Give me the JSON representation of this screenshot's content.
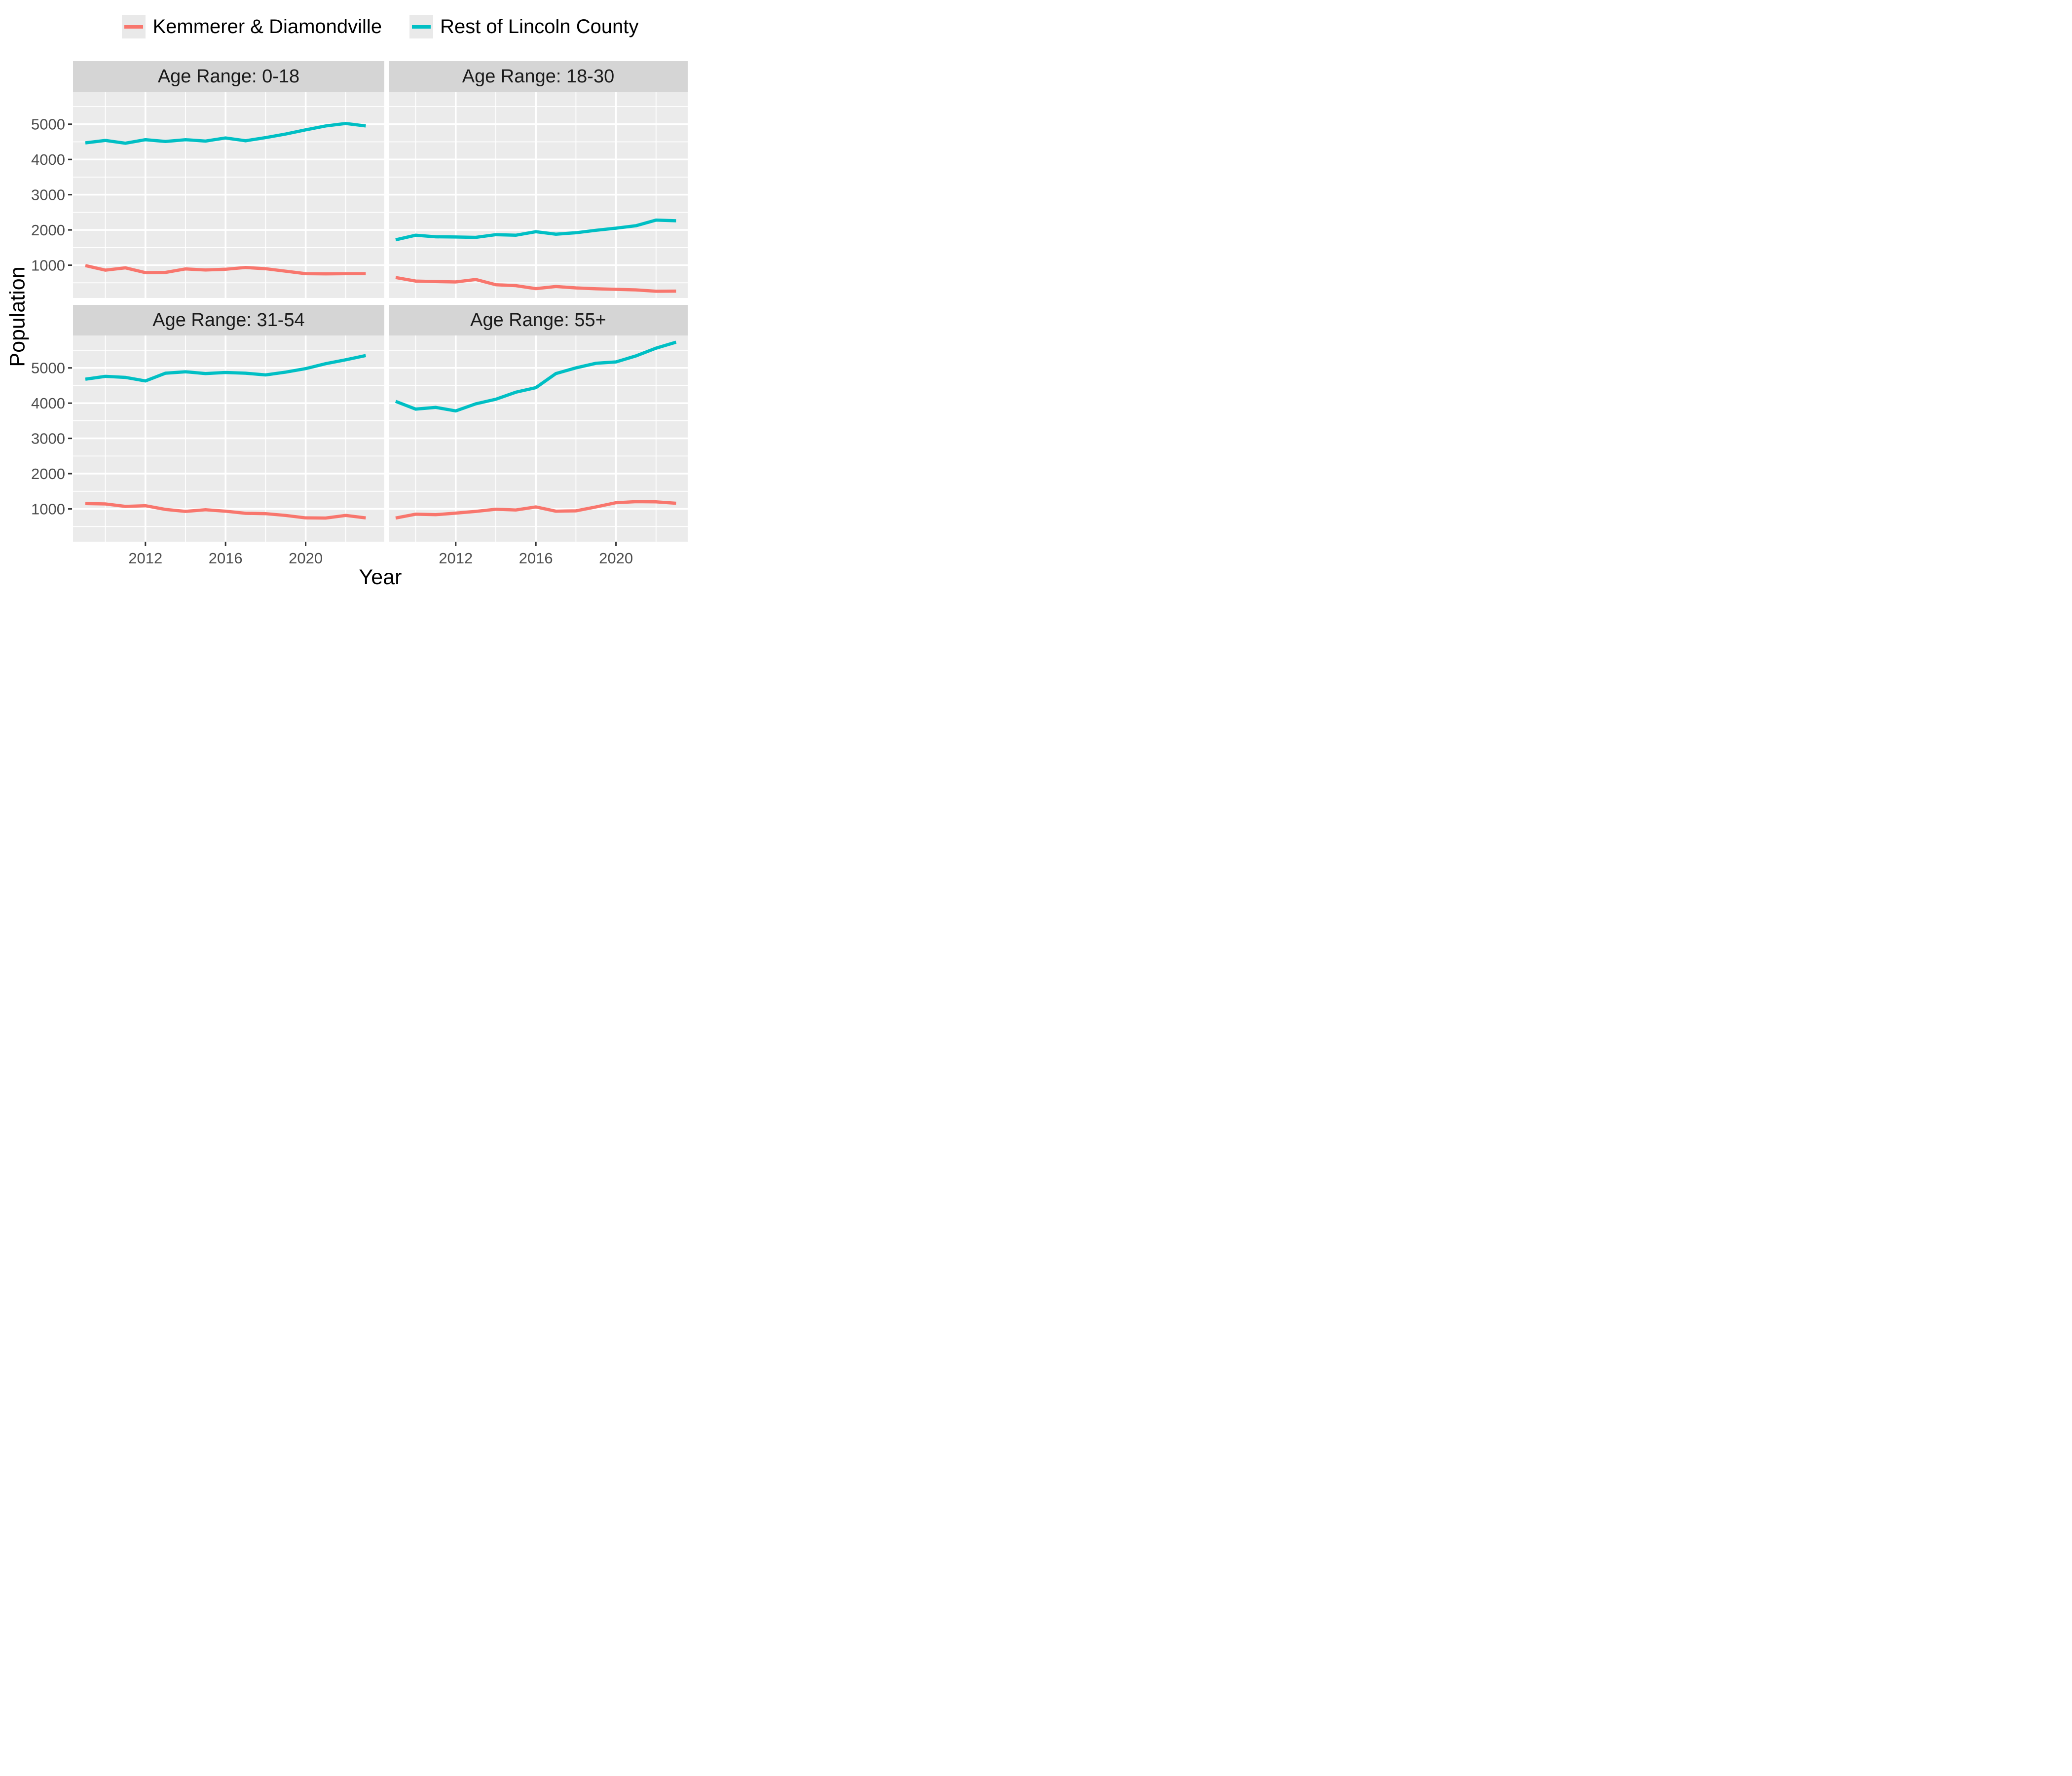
{
  "figure": {
    "x_axis_title": "Year",
    "y_axis_title": "Population",
    "background_color": "#FFFFFF",
    "panel_background_color": "#EBEBEB",
    "strip_background_color": "#D5D5D5",
    "gridline_color": "#FFFFFF",
    "tick_label_color": "#4D4D4D",
    "tick_mark_color": "#333333"
  },
  "legend": {
    "position": "top",
    "key_background_color": "#E9E9E9",
    "items": [
      {
        "label": "Kemmerer & Diamondville",
        "color": "#F8766D"
      },
      {
        "label": "Rest of Lincoln County",
        "color": "#00BFC4"
      }
    ]
  },
  "chart_data": {
    "type": "line",
    "title": "",
    "xlabel": "Year",
    "ylabel": "Population",
    "x": [
      2009,
      2010,
      2011,
      2012,
      2013,
      2014,
      2015,
      2016,
      2017,
      2018,
      2019,
      2020,
      2021,
      2022,
      2023
    ],
    "x_ticks": [
      2012,
      2016,
      2020
    ],
    "y_ticks": [
      1000,
      2000,
      3000,
      4000,
      5000
    ],
    "y_minor_ticks": [
      500,
      1500,
      2500,
      3500,
      4500,
      5500
    ],
    "x_minor_gridlines": [
      2010,
      2014,
      2018,
      2022
    ],
    "xlim": [
      2008.3,
      2023.7
    ],
    "ylim": [
      70,
      5920
    ],
    "grid": true,
    "legend_position": "top",
    "line_width": 6.5,
    "panels": [
      {
        "title": "Age Range: 0-18",
        "series": [
          {
            "name": "Kemmerer & Diamondville",
            "values": [
              990,
              860,
              925,
              790,
              795,
              895,
              865,
              885,
              935,
              900,
              830,
              760,
              755,
              760,
              760
            ]
          },
          {
            "name": "Rest of Lincoln County",
            "values": [
              4470,
              4540,
              4460,
              4560,
              4510,
              4560,
              4520,
              4610,
              4530,
              4620,
              4720,
              4840,
              4950,
              5020,
              4950
            ]
          }
        ]
      },
      {
        "title": "Age Range: 18-30",
        "series": [
          {
            "name": "Kemmerer & Diamondville",
            "values": [
              650,
              550,
              535,
              525,
              595,
              445,
              420,
              335,
              395,
              355,
              330,
              315,
              300,
              260,
              265
            ]
          },
          {
            "name": "Rest of Lincoln County",
            "values": [
              1720,
              1850,
              1805,
              1800,
              1790,
              1865,
              1850,
              1950,
              1880,
              1920,
              1990,
              2050,
              2120,
              2280,
              2260
            ]
          }
        ]
      },
      {
        "title": "Age Range: 31-54",
        "series": [
          {
            "name": "Kemmerer & Diamondville",
            "values": [
              1150,
              1140,
              1070,
              1090,
              985,
              930,
              975,
              935,
              875,
              865,
              815,
              745,
              740,
              815,
              745
            ]
          },
          {
            "name": "Rest of Lincoln County",
            "values": [
              4680,
              4760,
              4730,
              4630,
              4850,
              4890,
              4840,
              4870,
              4850,
              4800,
              4880,
              4980,
              5120,
              5230,
              5350
            ]
          }
        ]
      },
      {
        "title": "Age Range: 55+",
        "series": [
          {
            "name": "Kemmerer & Diamondville",
            "values": [
              740,
              850,
              835,
              880,
              930,
              990,
              970,
              1055,
              935,
              945,
              1055,
              1175,
              1205,
              1200,
              1160
            ]
          },
          {
            "name": "Rest of Lincoln County",
            "values": [
              4050,
              3830,
              3880,
              3780,
              3980,
              4110,
              4310,
              4440,
              4840,
              5000,
              5130,
              5170,
              5340,
              5560,
              5730
            ]
          }
        ]
      }
    ]
  }
}
